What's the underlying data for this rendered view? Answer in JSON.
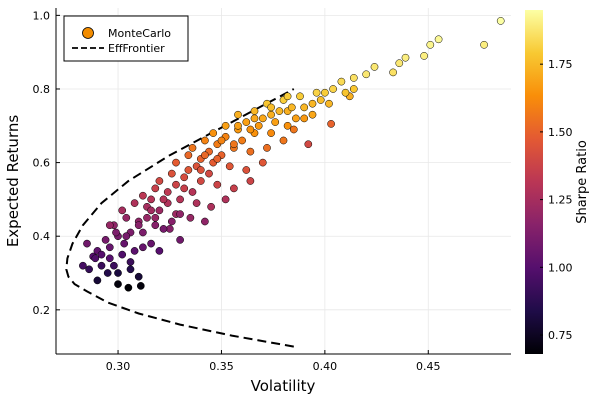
{
  "chart_data": {
    "type": "scatter",
    "xlabel": "Volatility",
    "ylabel": "Expected Returns",
    "xlim": [
      0.27,
      0.49
    ],
    "ylim": [
      0.08,
      1.02
    ],
    "x_ticks": [
      0.3,
      0.35,
      0.4,
      0.45
    ],
    "x_tick_labels": [
      "0.30",
      "0.35",
      "0.40",
      "0.45"
    ],
    "y_ticks": [
      0.2,
      0.4,
      0.6,
      0.8,
      1.0
    ],
    "y_tick_labels": [
      "0.2",
      "0.4",
      "0.6",
      "0.8",
      "1.0"
    ],
    "grid": true,
    "legend_position": "top-left",
    "legend": [
      {
        "name": "MonteCarlo",
        "marker": "circle",
        "color": "#f28c00"
      },
      {
        "name": "EffFrontier",
        "style": "dashed",
        "color": "#000000"
      }
    ],
    "colorbar": {
      "label": "Sharpe Ratio",
      "range": [
        0.68,
        1.95
      ],
      "ticks": [
        0.75,
        1.0,
        1.25,
        1.5,
        1.75
      ],
      "tick_labels": [
        "0.75",
        "1.00",
        "1.25",
        "1.50",
        "1.75"
      ],
      "colormap": [
        "#000004",
        "#1f0c48",
        "#550f6d",
        "#88226a",
        "#ba3655",
        "#e35933",
        "#f98e09",
        "#f8c932",
        "#fcffa4"
      ]
    },
    "series": [
      {
        "name": "EffFrontier",
        "type": "line",
        "x": [
          0.385,
          0.355,
          0.33,
          0.31,
          0.295,
          0.285,
          0.279,
          0.276,
          0.275,
          0.2755,
          0.278,
          0.283,
          0.292,
          0.305,
          0.325,
          0.355,
          0.385
        ],
        "y": [
          0.1,
          0.13,
          0.16,
          0.19,
          0.22,
          0.25,
          0.27,
          0.29,
          0.31,
          0.34,
          0.38,
          0.43,
          0.49,
          0.55,
          0.62,
          0.71,
          0.8
        ]
      },
      {
        "name": "MonteCarlo",
        "type": "scatter",
        "points": [
          [
            0.3,
            0.27,
            0.7
          ],
          [
            0.305,
            0.26,
            0.68
          ],
          [
            0.311,
            0.265,
            0.7
          ],
          [
            0.29,
            0.28,
            0.8
          ],
          [
            0.295,
            0.3,
            0.85
          ],
          [
            0.3,
            0.3,
            0.82
          ],
          [
            0.306,
            0.31,
            0.85
          ],
          [
            0.286,
            0.31,
            0.9
          ],
          [
            0.283,
            0.32,
            0.95
          ],
          [
            0.292,
            0.32,
            0.92
          ],
          [
            0.296,
            0.34,
            1.0
          ],
          [
            0.288,
            0.345,
            1.0
          ],
          [
            0.302,
            0.35,
            0.98
          ],
          [
            0.308,
            0.36,
            1.02
          ],
          [
            0.312,
            0.37,
            1.05
          ],
          [
            0.29,
            0.36,
            1.03
          ],
          [
            0.285,
            0.38,
            1.08
          ],
          [
            0.294,
            0.39,
            1.1
          ],
          [
            0.3,
            0.4,
            1.1
          ],
          [
            0.306,
            0.41,
            1.12
          ],
          [
            0.316,
            0.38,
            1.05
          ],
          [
            0.32,
            0.36,
            1.0
          ],
          [
            0.298,
            0.43,
            1.18
          ],
          [
            0.304,
            0.45,
            1.2
          ],
          [
            0.31,
            0.44,
            1.18
          ],
          [
            0.318,
            0.43,
            1.15
          ],
          [
            0.325,
            0.42,
            1.15
          ],
          [
            0.33,
            0.39,
            1.08
          ],
          [
            0.302,
            0.47,
            1.25
          ],
          [
            0.308,
            0.49,
            1.28
          ],
          [
            0.314,
            0.48,
            1.25
          ],
          [
            0.32,
            0.47,
            1.22
          ],
          [
            0.328,
            0.46,
            1.22
          ],
          [
            0.335,
            0.45,
            1.2
          ],
          [
            0.342,
            0.44,
            1.18
          ],
          [
            0.312,
            0.51,
            1.32
          ],
          [
            0.318,
            0.53,
            1.36
          ],
          [
            0.324,
            0.52,
            1.33
          ],
          [
            0.33,
            0.5,
            1.3
          ],
          [
            0.338,
            0.49,
            1.28
          ],
          [
            0.345,
            0.48,
            1.27
          ],
          [
            0.352,
            0.5,
            1.28
          ],
          [
            0.32,
            0.55,
            1.4
          ],
          [
            0.326,
            0.57,
            1.44
          ],
          [
            0.332,
            0.56,
            1.42
          ],
          [
            0.34,
            0.55,
            1.4
          ],
          [
            0.348,
            0.54,
            1.38
          ],
          [
            0.356,
            0.53,
            1.36
          ],
          [
            0.364,
            0.55,
            1.38
          ],
          [
            0.328,
            0.6,
            1.48
          ],
          [
            0.334,
            0.62,
            1.52
          ],
          [
            0.34,
            0.61,
            1.5
          ],
          [
            0.346,
            0.6,
            1.48
          ],
          [
            0.354,
            0.59,
            1.46
          ],
          [
            0.362,
            0.58,
            1.44
          ],
          [
            0.37,
            0.6,
            1.46
          ],
          [
            0.336,
            0.64,
            1.56
          ],
          [
            0.342,
            0.66,
            1.6
          ],
          [
            0.348,
            0.65,
            1.58
          ],
          [
            0.356,
            0.64,
            1.56
          ],
          [
            0.364,
            0.63,
            1.54
          ],
          [
            0.372,
            0.64,
            1.54
          ],
          [
            0.38,
            0.66,
            1.56
          ],
          [
            0.346,
            0.68,
            1.64
          ],
          [
            0.352,
            0.7,
            1.68
          ],
          [
            0.358,
            0.69,
            1.66
          ],
          [
            0.366,
            0.68,
            1.64
          ],
          [
            0.374,
            0.68,
            1.62
          ],
          [
            0.382,
            0.7,
            1.64
          ],
          [
            0.39,
            0.72,
            1.66
          ],
          [
            0.358,
            0.73,
            1.72
          ],
          [
            0.366,
            0.74,
            1.74
          ],
          [
            0.374,
            0.73,
            1.72
          ],
          [
            0.382,
            0.74,
            1.72
          ],
          [
            0.39,
            0.75,
            1.74
          ],
          [
            0.398,
            0.77,
            1.76
          ],
          [
            0.372,
            0.76,
            1.78
          ],
          [
            0.38,
            0.77,
            1.8
          ],
          [
            0.388,
            0.78,
            1.8
          ],
          [
            0.396,
            0.79,
            1.82
          ],
          [
            0.404,
            0.8,
            1.82
          ],
          [
            0.408,
            0.82,
            1.84
          ],
          [
            0.414,
            0.83,
            1.86
          ],
          [
            0.42,
            0.84,
            1.88
          ],
          [
            0.424,
            0.86,
            1.88
          ],
          [
            0.433,
            0.845,
            1.86
          ],
          [
            0.436,
            0.87,
            1.88
          ],
          [
            0.439,
            0.885,
            1.9
          ],
          [
            0.448,
            0.89,
            1.9
          ],
          [
            0.451,
            0.92,
            1.92
          ],
          [
            0.455,
            0.935,
            1.93
          ],
          [
            0.477,
            0.92,
            1.9
          ],
          [
            0.485,
            0.985,
            1.95
          ],
          [
            0.403,
            0.705,
            1.5
          ],
          [
            0.392,
            0.65,
            1.4
          ],
          [
            0.414,
            0.8,
            1.78
          ],
          [
            0.385,
            0.69,
            1.56
          ],
          [
            0.412,
            0.78,
            1.72
          ],
          [
            0.326,
            0.44,
            1.15
          ],
          [
            0.314,
            0.45,
            1.2
          ],
          [
            0.296,
            0.37,
            1.05
          ],
          [
            0.289,
            0.34,
            0.98
          ],
          [
            0.31,
            0.29,
            0.8
          ],
          [
            0.296,
            0.43,
            1.2
          ],
          [
            0.299,
            0.41,
            1.12
          ],
          [
            0.316,
            0.5,
            1.3
          ],
          [
            0.322,
            0.42,
            1.1
          ],
          [
            0.33,
            0.46,
            1.18
          ],
          [
            0.336,
            0.52,
            1.3
          ],
          [
            0.344,
            0.57,
            1.4
          ],
          [
            0.35,
            0.62,
            1.5
          ],
          [
            0.36,
            0.66,
            1.58
          ],
          [
            0.368,
            0.7,
            1.66
          ],
          [
            0.376,
            0.71,
            1.68
          ],
          [
            0.384,
            0.75,
            1.74
          ],
          [
            0.394,
            0.76,
            1.74
          ],
          [
            0.4,
            0.79,
            1.8
          ],
          [
            0.338,
            0.59,
            1.44
          ],
          [
            0.344,
            0.63,
            1.52
          ],
          [
            0.352,
            0.67,
            1.6
          ],
          [
            0.362,
            0.71,
            1.68
          ],
          [
            0.37,
            0.72,
            1.7
          ],
          [
            0.378,
            0.74,
            1.74
          ],
          [
            0.306,
            0.33,
            0.92
          ],
          [
            0.303,
            0.38,
            1.05
          ],
          [
            0.312,
            0.41,
            1.12
          ],
          [
            0.318,
            0.45,
            1.2
          ],
          [
            0.324,
            0.49,
            1.28
          ],
          [
            0.332,
            0.53,
            1.36
          ],
          [
            0.34,
            0.58,
            1.44
          ],
          [
            0.348,
            0.61,
            1.5
          ],
          [
            0.356,
            0.65,
            1.56
          ],
          [
            0.364,
            0.69,
            1.64
          ],
          [
            0.386,
            0.72,
            1.68
          ],
          [
            0.394,
            0.73,
            1.7
          ],
          [
            0.402,
            0.76,
            1.74
          ],
          [
            0.41,
            0.79,
            1.78
          ],
          [
            0.292,
            0.35,
            1.0
          ],
          [
            0.298,
            0.32,
            0.92
          ],
          [
            0.304,
            0.4,
            1.1
          ],
          [
            0.31,
            0.43,
            1.16
          ],
          [
            0.316,
            0.47,
            1.24
          ],
          [
            0.322,
            0.5,
            1.3
          ],
          [
            0.328,
            0.54,
            1.38
          ],
          [
            0.334,
            0.58,
            1.46
          ],
          [
            0.342,
            0.62,
            1.52
          ],
          [
            0.35,
            0.66,
            1.6
          ],
          [
            0.358,
            0.7,
            1.68
          ],
          [
            0.366,
            0.72,
            1.7
          ],
          [
            0.374,
            0.75,
            1.76
          ],
          [
            0.382,
            0.78,
            1.8
          ]
        ]
      }
    ]
  }
}
